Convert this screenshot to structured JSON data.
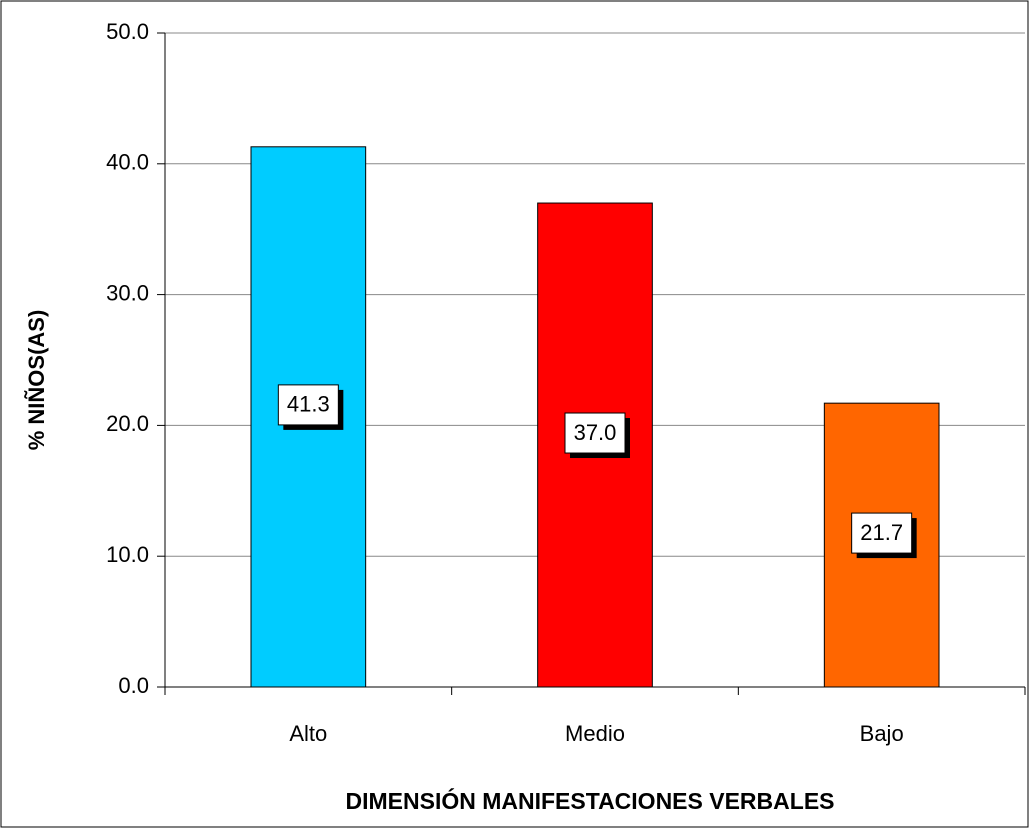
{
  "chart_data": {
    "type": "bar",
    "xlabel": "DIMENSIÓN MANIFESTACIONES VERBALES",
    "ylabel": "% NIÑOS(AS)",
    "categories": [
      "Alto",
      "Medio",
      "Bajo"
    ],
    "values": [
      41.3,
      37.0,
      21.7
    ],
    "value_labels": [
      "41.3",
      "37.0",
      "21.7"
    ],
    "colors": [
      "#00ccff",
      "#ff0000",
      "#ff6600"
    ],
    "ylim": [
      0,
      50
    ],
    "yticks": [
      {
        "value": 0,
        "label": "0.0"
      },
      {
        "value": 10,
        "label": "10.0"
      },
      {
        "value": 20,
        "label": "20.0"
      },
      {
        "value": 30,
        "label": "30.0"
      },
      {
        "value": 40,
        "label": "40.0"
      },
      {
        "value": 50,
        "label": "50.0"
      }
    ],
    "grid": true
  }
}
